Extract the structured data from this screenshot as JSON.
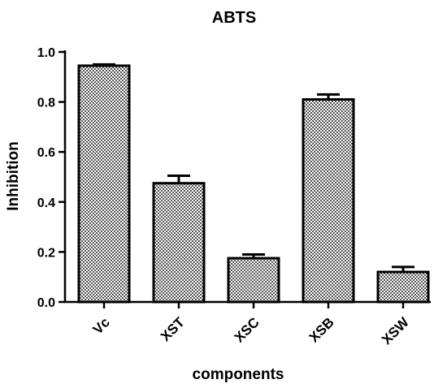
{
  "chart_data": {
    "type": "bar",
    "title": "ABTS",
    "xlabel": "components",
    "ylabel": "Inhibition",
    "categories": [
      "Vc",
      "XST",
      "XSC",
      "XSB",
      "XSW"
    ],
    "values": [
      0.945,
      0.475,
      0.175,
      0.81,
      0.12
    ],
    "errors": [
      0.005,
      0.03,
      0.015,
      0.02,
      0.02
    ],
    "ylim": [
      0,
      1.0
    ],
    "yticks": [
      0.0,
      0.2,
      0.4,
      0.6,
      0.8,
      1.0
    ],
    "ytick_labels": [
      "0.0",
      "0.2",
      "0.4",
      "0.6",
      "0.8",
      "1.0"
    ],
    "grid": false,
    "bar_pattern": "checkered-hatch",
    "bar_color": "#7a7a7a",
    "edge_color": "#000000"
  }
}
